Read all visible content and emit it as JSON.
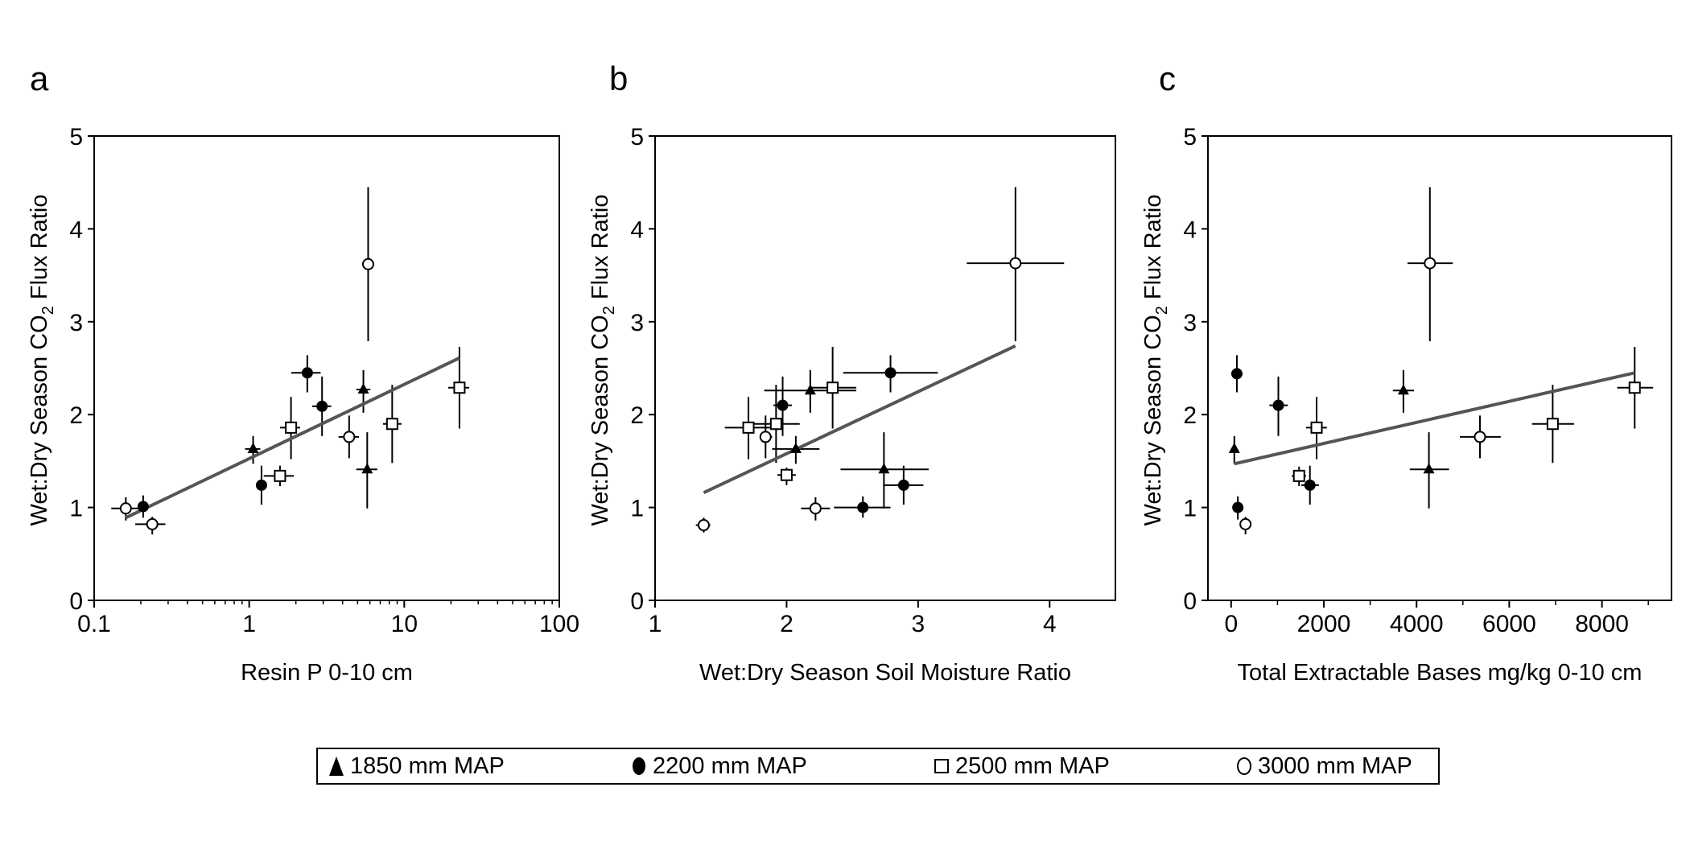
{
  "figure": {
    "legend": [
      {
        "symbol": "filled-triangle",
        "label": "1850 mm MAP"
      },
      {
        "symbol": "filled-circle",
        "label": "2200 mm MAP"
      },
      {
        "symbol": "open-square",
        "label": "2500 mm MAP"
      },
      {
        "symbol": "open-circle",
        "label": "3000 mm MAP"
      }
    ],
    "colors": {
      "axis": "#000000",
      "regression": "#555555",
      "marker_fill_open": "#ffffff",
      "marker_fill_filled": "#000000"
    }
  },
  "chart_data": [
    {
      "panel": "a",
      "type": "scatter",
      "xscale": "log",
      "xlabel": "Resin P 0-10 cm",
      "ylabel": "Wet:Dry Season CO2 Flux Ratio",
      "xlim": [
        0.1,
        100
      ],
      "ylim": [
        0,
        5
      ],
      "xticks": [
        0.1,
        1,
        10,
        100
      ],
      "xtick_labels": [
        "0.1",
        "1",
        "10",
        "100"
      ],
      "yticks": [
        0,
        1,
        2,
        3,
        4,
        5
      ],
      "ytick_labels": [
        "0",
        "1",
        "2",
        "3",
        "4",
        "5"
      ],
      "grid": false,
      "regression": {
        "x": [
          0.16,
          22.7
        ],
        "y": [
          0.89,
          2.61
        ]
      },
      "points": [
        {
          "series": "3000 mm MAP",
          "x": 0.16,
          "y": 0.99,
          "xerr": [
            0.129,
            0.202
          ],
          "yerr": [
            0.86,
            1.11
          ]
        },
        {
          "series": "2200 mm MAP",
          "x": 0.207,
          "y": 1.01,
          "xerr": [
            0.2,
            0.215
          ],
          "yerr": [
            0.89,
            1.13
          ]
        },
        {
          "series": "3000 mm MAP",
          "x": 0.237,
          "y": 0.82,
          "xerr": [
            0.184,
            0.288
          ],
          "yerr": [
            0.71,
            0.9
          ]
        },
        {
          "series": "1850 mm MAP",
          "x": 1.06,
          "y": 1.63,
          "xerr": [
            0.94,
            1.18
          ],
          "yerr": [
            1.47,
            1.77
          ]
        },
        {
          "series": "2200 mm MAP",
          "x": 1.2,
          "y": 1.24,
          "xerr": [
            1.15,
            1.25
          ],
          "yerr": [
            1.03,
            1.45
          ]
        },
        {
          "series": "2500 mm MAP",
          "x": 1.58,
          "y": 1.34,
          "xerr": [
            1.24,
            1.94
          ],
          "yerr": [
            1.23,
            1.45
          ]
        },
        {
          "series": "2500 mm MAP",
          "x": 1.86,
          "y": 1.86,
          "xerr": [
            1.58,
            2.13
          ],
          "yerr": [
            1.52,
            2.19
          ]
        },
        {
          "series": "2200 mm MAP",
          "x": 2.37,
          "y": 2.45,
          "xerr": [
            1.87,
            2.89
          ],
          "yerr": [
            2.24,
            2.64
          ]
        },
        {
          "series": "2200 mm MAP",
          "x": 2.95,
          "y": 2.09,
          "xerr": [
            2.55,
            3.38
          ],
          "yerr": [
            1.77,
            2.41
          ]
        },
        {
          "series": "3000 mm MAP",
          "x": 5.85,
          "y": 3.62,
          "xerr": [
            5.6,
            6.1
          ],
          "yerr": [
            2.79,
            4.45
          ]
        },
        {
          "series": "1850 mm MAP",
          "x": 5.45,
          "y": 2.27,
          "xerr": [
            4.9,
            6.05
          ],
          "yerr": [
            2.02,
            2.48
          ]
        },
        {
          "series": "3000 mm MAP",
          "x": 4.41,
          "y": 1.76,
          "xerr": [
            3.77,
            5.1
          ],
          "yerr": [
            1.53,
            1.99
          ]
        },
        {
          "series": "1850 mm MAP",
          "x": 5.77,
          "y": 1.41,
          "xerr": [
            4.9,
            6.7
          ],
          "yerr": [
            0.99,
            1.81
          ]
        },
        {
          "series": "2500 mm MAP",
          "x": 8.36,
          "y": 1.9,
          "xerr": [
            7.3,
            9.6
          ],
          "yerr": [
            1.48,
            2.32
          ]
        },
        {
          "series": "2500 mm MAP",
          "x": 22.7,
          "y": 2.29,
          "xerr": [
            19.2,
            26.2
          ],
          "yerr": [
            1.85,
            2.73
          ]
        }
      ]
    },
    {
      "panel": "b",
      "type": "scatter",
      "xscale": "linear",
      "xlabel": "Wet:Dry Season Soil Moisture Ratio",
      "ylabel": "Wet:Dry Season CO2 Flux Ratio",
      "xlim": [
        1,
        4.5
      ],
      "ylim": [
        0,
        5
      ],
      "xticks": [
        1,
        2,
        3,
        4
      ],
      "xtick_labels": [
        "1",
        "2",
        "3",
        "4"
      ],
      "yticks": [
        0,
        1,
        2,
        3,
        4,
        5
      ],
      "ytick_labels": [
        "0",
        "1",
        "2",
        "3",
        "4",
        "5"
      ],
      "grid": false,
      "regression": {
        "x": [
          1.37,
          3.74
        ],
        "y": [
          1.16,
          2.74
        ]
      },
      "points": [
        {
          "series": "3000 mm MAP",
          "x": 1.37,
          "y": 0.81,
          "xerr": [
            1.31,
            1.42
          ],
          "yerr": [
            0.73,
            0.89
          ]
        },
        {
          "series": "3000 mm MAP",
          "x": 2.22,
          "y": 0.99,
          "xerr": [
            2.11,
            2.33
          ],
          "yerr": [
            0.86,
            1.11
          ]
        },
        {
          "series": "2200 mm MAP",
          "x": 2.58,
          "y": 1.0,
          "xerr": [
            2.36,
            2.79
          ],
          "yerr": [
            0.89,
            1.12
          ]
        },
        {
          "series": "1850 mm MAP",
          "x": 2.74,
          "y": 1.41,
          "xerr": [
            2.41,
            3.08
          ],
          "yerr": [
            0.99,
            1.81
          ]
        },
        {
          "series": "2200 mm MAP",
          "x": 2.89,
          "y": 1.24,
          "xerr": [
            2.74,
            3.04
          ],
          "yerr": [
            1.03,
            1.45
          ]
        },
        {
          "series": "2500 mm MAP",
          "x": 2.0,
          "y": 1.35,
          "xerr": [
            1.93,
            2.07
          ],
          "yerr": [
            1.24,
            1.43
          ]
        },
        {
          "series": "1850 mm MAP",
          "x": 2.07,
          "y": 1.63,
          "xerr": [
            1.89,
            2.25
          ],
          "yerr": [
            1.47,
            1.77
          ]
        },
        {
          "series": "3000 mm MAP",
          "x": 1.84,
          "y": 1.76,
          "xerr": [
            1.8,
            1.89
          ],
          "yerr": [
            1.53,
            1.99
          ]
        },
        {
          "series": "2500 mm MAP",
          "x": 1.71,
          "y": 1.86,
          "xerr": [
            1.53,
            1.93
          ],
          "yerr": [
            1.52,
            2.19
          ]
        },
        {
          "series": "2500 mm MAP",
          "x": 1.92,
          "y": 1.9,
          "xerr": [
            1.75,
            2.1
          ],
          "yerr": [
            1.48,
            2.32
          ]
        },
        {
          "series": "2200 mm MAP",
          "x": 1.97,
          "y": 2.1,
          "xerr": [
            1.9,
            2.04
          ],
          "yerr": [
            1.77,
            2.41
          ]
        },
        {
          "series": "1850 mm MAP",
          "x": 2.18,
          "y": 2.26,
          "xerr": [
            1.83,
            2.53
          ],
          "yerr": [
            2.02,
            2.48
          ]
        },
        {
          "series": "2500 mm MAP",
          "x": 2.35,
          "y": 2.29,
          "xerr": [
            2.18,
            2.53
          ],
          "yerr": [
            1.85,
            2.73
          ]
        },
        {
          "series": "2200 mm MAP",
          "x": 2.79,
          "y": 2.45,
          "xerr": [
            2.43,
            3.15
          ],
          "yerr": [
            2.24,
            2.64
          ]
        },
        {
          "series": "3000 mm MAP",
          "x": 3.74,
          "y": 3.63,
          "xerr": [
            3.37,
            4.11
          ],
          "yerr": [
            2.79,
            4.45
          ]
        }
      ]
    },
    {
      "panel": "c",
      "type": "scatter",
      "xscale": "linear",
      "xlabel": "Total Extractable Bases mg/kg 0-10 cm",
      "ylabel": "Wet:Dry Season CO2 Flux Ratio",
      "xlim": [
        -500,
        9500
      ],
      "ylim": [
        0,
        5
      ],
      "xticks": [
        0,
        2000,
        4000,
        6000,
        8000
      ],
      "xtick_labels": [
        "0",
        "2000",
        "4000",
        "6000",
        "8000"
      ],
      "xminor_ticks": [
        1000,
        3000,
        5000,
        7000,
        9000
      ],
      "yticks": [
        0,
        1,
        2,
        3,
        4,
        5
      ],
      "ytick_labels": [
        "0",
        "1",
        "2",
        "3",
        "4",
        "5"
      ],
      "grid": false,
      "regression": {
        "x": [
          69,
          8706
        ],
        "y": [
          1.47,
          2.45
        ]
      },
      "points": [
        {
          "series": "2200 mm MAP",
          "x": 124,
          "y": 2.44,
          "xerr": [
            124,
            124
          ],
          "yerr": [
            2.24,
            2.64
          ]
        },
        {
          "series": "1850 mm MAP",
          "x": 69,
          "y": 1.63,
          "xerr": [
            69,
            69
          ],
          "yerr": [
            1.47,
            1.77
          ]
        },
        {
          "series": "2200 mm MAP",
          "x": 145,
          "y": 1.0,
          "xerr": [
            145,
            145
          ],
          "yerr": [
            0.87,
            1.12
          ]
        },
        {
          "series": "3000 mm MAP",
          "x": 310,
          "y": 0.82,
          "xerr": [
            310,
            310
          ],
          "yerr": [
            0.71,
            0.9
          ]
        },
        {
          "series": "2200 mm MAP",
          "x": 1019,
          "y": 2.1,
          "xerr": [
            826,
            1225
          ],
          "yerr": [
            1.77,
            2.41
          ]
        },
        {
          "series": "2500 mm MAP",
          "x": 1466,
          "y": 1.34,
          "xerr": [
            1308,
            1617
          ],
          "yerr": [
            1.23,
            1.44
          ]
        },
        {
          "series": "2200 mm MAP",
          "x": 1700,
          "y": 1.24,
          "xerr": [
            1514,
            1893
          ],
          "yerr": [
            1.03,
            1.45
          ]
        },
        {
          "series": "2500 mm MAP",
          "x": 1844,
          "y": 1.86,
          "xerr": [
            1617,
            2065
          ],
          "yerr": [
            1.52,
            2.19
          ]
        },
        {
          "series": "1850 mm MAP",
          "x": 3717,
          "y": 2.26,
          "xerr": [
            3490,
            3944
          ],
          "yerr": [
            2.02,
            2.48
          ]
        },
        {
          "series": "3000 mm MAP",
          "x": 4288,
          "y": 3.63,
          "xerr": [
            3806,
            4783
          ],
          "yerr": [
            2.79,
            4.45
          ]
        },
        {
          "series": "1850 mm MAP",
          "x": 4267,
          "y": 1.41,
          "xerr": [
            3854,
            4701
          ],
          "yerr": [
            0.99,
            1.81
          ]
        },
        {
          "series": "3000 mm MAP",
          "x": 5368,
          "y": 1.76,
          "xerr": [
            4935,
            5816
          ],
          "yerr": [
            1.53,
            1.99
          ]
        },
        {
          "series": "2500 mm MAP",
          "x": 6937,
          "y": 1.9,
          "xerr": [
            6490,
            7398
          ],
          "yerr": [
            1.48,
            2.32
          ]
        },
        {
          "series": "2500 mm MAP",
          "x": 8706,
          "y": 2.29,
          "xerr": [
            8328,
            9105
          ],
          "yerr": [
            1.85,
            2.73
          ]
        }
      ]
    }
  ]
}
